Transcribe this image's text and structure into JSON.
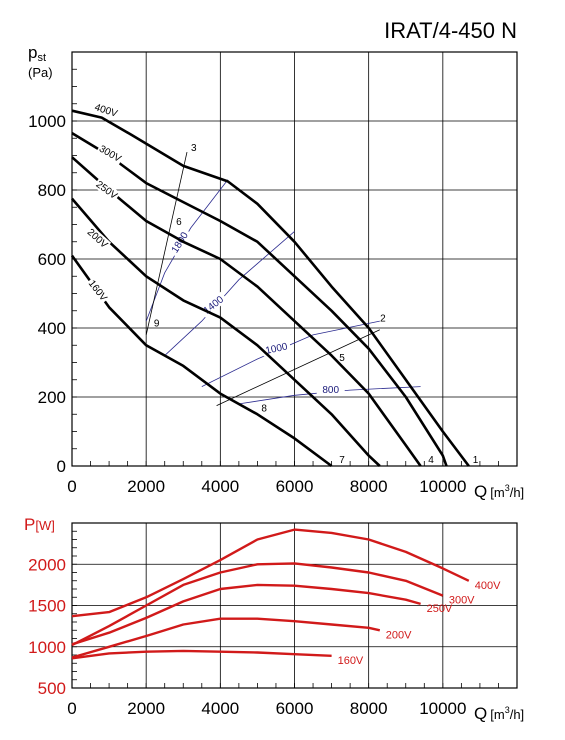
{
  "title": "IRAT/4-450 N",
  "chart_data": [
    {
      "type": "line",
      "ylabel_main": "p",
      "ylabel_sub": "st",
      "yunit": "(Pa)",
      "xlabel": "Q",
      "xunit_pre": "[m",
      "xunit_sup": "3",
      "xunit_post": "/h]",
      "xlim": [
        0,
        12000
      ],
      "ylim": [
        0,
        1200
      ],
      "xticks": [
        0,
        2000,
        4000,
        6000,
        8000,
        10000
      ],
      "yticks": [
        0,
        200,
        400,
        600,
        800,
        1000
      ],
      "grid": true,
      "series": [
        {
          "name": "400V",
          "points": [
            [
              0,
              1030
            ],
            [
              800,
              1010
            ],
            [
              1600,
              960
            ],
            [
              3000,
              870
            ],
            [
              4200,
              825
            ],
            [
              5000,
              760
            ],
            [
              6000,
              650
            ],
            [
              7000,
              520
            ],
            [
              8000,
              400
            ],
            [
              9000,
              250
            ],
            [
              10000,
              100
            ],
            [
              10700,
              0
            ]
          ]
        },
        {
          "name": "300V",
          "points": [
            [
              0,
              965
            ],
            [
              1000,
              900
            ],
            [
              2000,
              820
            ],
            [
              3000,
              765
            ],
            [
              4000,
              710
            ],
            [
              5000,
              650
            ],
            [
              6000,
              550
            ],
            [
              7000,
              450
            ],
            [
              8000,
              340
            ],
            [
              9000,
              200
            ],
            [
              10000,
              30
            ],
            [
              10100,
              0
            ]
          ]
        },
        {
          "name": "250V",
          "points": [
            [
              0,
              895
            ],
            [
              1000,
              800
            ],
            [
              2000,
              710
            ],
            [
              3000,
              650
            ],
            [
              4000,
              600
            ],
            [
              5000,
              520
            ],
            [
              6000,
              420
            ],
            [
              7000,
              320
            ],
            [
              8000,
              210
            ],
            [
              9000,
              60
            ],
            [
              9400,
              0
            ]
          ]
        },
        {
          "name": "200V",
          "points": [
            [
              0,
              775
            ],
            [
              1000,
              650
            ],
            [
              2000,
              550
            ],
            [
              3000,
              480
            ],
            [
              4000,
              430
            ],
            [
              5000,
              350
            ],
            [
              6000,
              250
            ],
            [
              7000,
              150
            ],
            [
              8000,
              30
            ],
            [
              8300,
              0
            ]
          ]
        },
        {
          "name": "160V",
          "points": [
            [
              0,
              610
            ],
            [
              1000,
              460
            ],
            [
              2000,
              350
            ],
            [
              3000,
              290
            ],
            [
              4000,
              210
            ],
            [
              5000,
              150
            ],
            [
              6000,
              80
            ],
            [
              7000,
              0
            ]
          ]
        }
      ],
      "operating_points": [
        {
          "label": "1",
          "x": 10700,
          "y": 0
        },
        {
          "label": "2",
          "x": 8200,
          "y": 410
        },
        {
          "label": "3",
          "x": 3100,
          "y": 905
        },
        {
          "label": "4",
          "x": 9500,
          "y": 0
        },
        {
          "label": "5",
          "x": 7100,
          "y": 295
        },
        {
          "label": "6",
          "x": 2700,
          "y": 690
        },
        {
          "label": "7",
          "x": 7100,
          "y": 0
        },
        {
          "label": "8",
          "x": 5000,
          "y": 150
        },
        {
          "label": "9",
          "x": 2100,
          "y": 395
        }
      ],
      "system_lines": [
        {
          "points": [
            [
              2000,
              380
            ],
            [
              3100,
              910
            ]
          ]
        },
        {
          "points": [
            [
              3900,
              175
            ],
            [
              8300,
              395
            ]
          ]
        }
      ],
      "speed_lines": [
        {
          "label": "1800",
          "points": [
            [
              2000,
              420
            ],
            [
              2500,
              560
            ],
            [
              3200,
              690
            ],
            [
              4200,
              830
            ]
          ]
        },
        {
          "label": "1400",
          "points": [
            [
              2500,
              320
            ],
            [
              3500,
              420
            ],
            [
              4500,
              540
            ],
            [
              6000,
              680
            ]
          ]
        },
        {
          "label": "1000",
          "points": [
            [
              3500,
              230
            ],
            [
              5000,
              310
            ],
            [
              6500,
              380
            ],
            [
              8300,
              420
            ]
          ]
        },
        {
          "label": "800",
          "points": [
            [
              4500,
              180
            ],
            [
              6000,
              205
            ],
            [
              7500,
              220
            ],
            [
              9400,
              230
            ]
          ]
        }
      ]
    },
    {
      "type": "line",
      "ylabel": "P",
      "yunit": "[W]",
      "xlabel": "Q",
      "xunit_pre": "[m",
      "xunit_sup": "3",
      "xunit_post": "/h]",
      "xlim": [
        0,
        12000
      ],
      "ylim": [
        500,
        2500
      ],
      "xticks": [
        0,
        2000,
        4000,
        6000,
        8000,
        10000
      ],
      "yticks": [
        500,
        1000,
        1500,
        2000
      ],
      "grid": true,
      "series": [
        {
          "name": "400V",
          "points": [
            [
              0,
              1370
            ],
            [
              1000,
              1420
            ],
            [
              2000,
              1600
            ],
            [
              3000,
              1820
            ],
            [
              4000,
              2050
            ],
            [
              5000,
              2300
            ],
            [
              6000,
              2420
            ],
            [
              7000,
              2380
            ],
            [
              8000,
              2300
            ],
            [
              9000,
              2150
            ],
            [
              10000,
              1950
            ],
            [
              10700,
              1800
            ]
          ]
        },
        {
          "name": "300V",
          "points": [
            [
              0,
              1020
            ],
            [
              1000,
              1250
            ],
            [
              2000,
              1500
            ],
            [
              3000,
              1750
            ],
            [
              4000,
              1900
            ],
            [
              5000,
              2000
            ],
            [
              6000,
              2010
            ],
            [
              7000,
              1960
            ],
            [
              8000,
              1900
            ],
            [
              9000,
              1800
            ],
            [
              10000,
              1620
            ]
          ]
        },
        {
          "name": "250V",
          "points": [
            [
              0,
              1030
            ],
            [
              1000,
              1170
            ],
            [
              2000,
              1350
            ],
            [
              3000,
              1550
            ],
            [
              4000,
              1700
            ],
            [
              5000,
              1750
            ],
            [
              6000,
              1740
            ],
            [
              7000,
              1700
            ],
            [
              8000,
              1650
            ],
            [
              9000,
              1570
            ],
            [
              9400,
              1520
            ]
          ]
        },
        {
          "name": "200V",
          "points": [
            [
              0,
              870
            ],
            [
              1000,
              1000
            ],
            [
              2000,
              1130
            ],
            [
              3000,
              1270
            ],
            [
              4000,
              1340
            ],
            [
              5000,
              1340
            ],
            [
              6000,
              1310
            ],
            [
              7000,
              1270
            ],
            [
              8000,
              1230
            ],
            [
              8300,
              1200
            ]
          ]
        },
        {
          "name": "160V",
          "points": [
            [
              0,
              860
            ],
            [
              1000,
              920
            ],
            [
              2000,
              940
            ],
            [
              3000,
              950
            ],
            [
              4000,
              940
            ],
            [
              5000,
              930
            ],
            [
              6000,
              910
            ],
            [
              7000,
              890
            ]
          ]
        }
      ]
    }
  ]
}
